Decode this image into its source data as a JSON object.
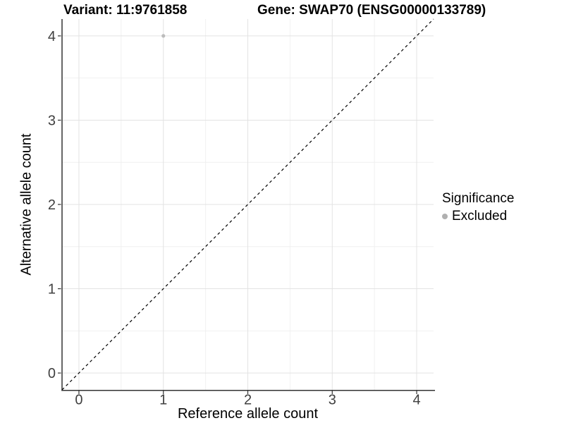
{
  "chart_data": {
    "type": "scatter",
    "title": {
      "left": "Variant: 11:9761858",
      "right": "Gene: SWAP70 (ENSG00000133789)"
    },
    "xlabel": "Reference allele count",
    "ylabel": "Alternative allele count",
    "xlim": [
      -0.2,
      4.2
    ],
    "ylim": [
      -0.2,
      4.2
    ],
    "x_ticks": [
      0,
      1,
      2,
      3,
      4
    ],
    "y_ticks": [
      0,
      1,
      2,
      3,
      4
    ],
    "x_minor_ticks": [
      0.5,
      1.5,
      2.5,
      3.5
    ],
    "y_minor_ticks": [
      0.5,
      1.5,
      2.5,
      3.5
    ],
    "grid": {
      "on": true,
      "major_color": "#e3e3e3",
      "minor_color": "#f0f0f0"
    },
    "identity_line": {
      "style": "dashed",
      "color": "#000000",
      "from": [
        -0.2,
        -0.2
      ],
      "to": [
        4.2,
        4.2
      ]
    },
    "series": [
      {
        "name": "Excluded",
        "color": "#bcbcbc",
        "points": [
          {
            "x": 1,
            "y": 4
          }
        ]
      }
    ],
    "legend": {
      "title": "Significance",
      "position": "right",
      "entries": [
        {
          "label": "Excluded",
          "color": "#b0b0b0"
        }
      ]
    }
  }
}
